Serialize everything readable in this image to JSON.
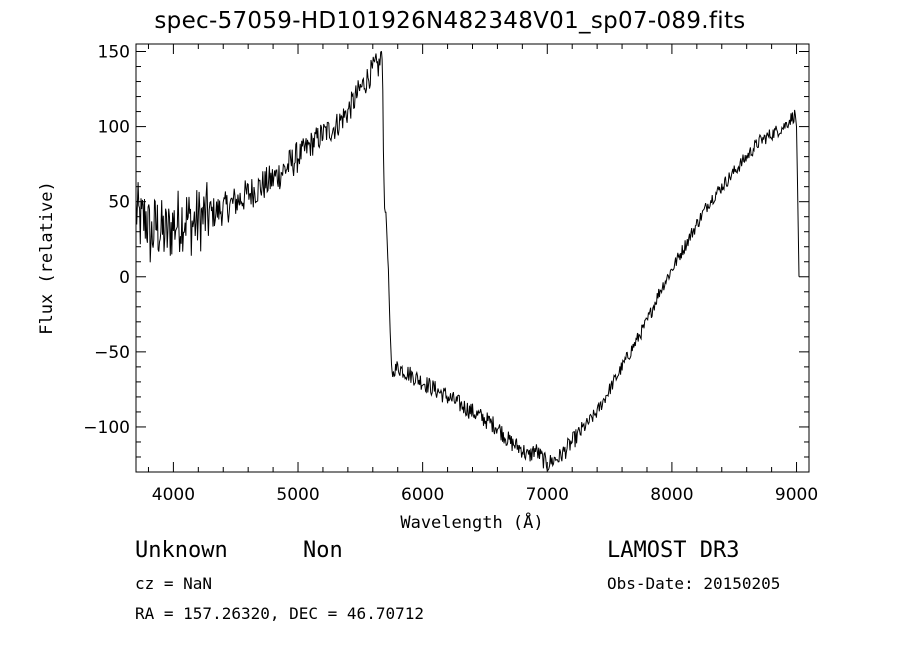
{
  "chart_data": {
    "type": "line",
    "title": "spec-57059-HD101926N482348V01_sp07-089.fits",
    "xlabel": "Wavelength (Å)",
    "ylabel": "Flux (relative)",
    "xlim": [
      3700,
      9100
    ],
    "ylim": [
      -130,
      155
    ],
    "xticks": [
      4000,
      5000,
      6000,
      7000,
      8000,
      9000
    ],
    "yticks": [
      -100,
      -50,
      0,
      50,
      100,
      150
    ],
    "grid": false,
    "line_color": "#000000",
    "series": [
      {
        "x": [
          3700,
          3740,
          3780,
          3820,
          3860,
          3900,
          3950,
          4000,
          4050,
          4100,
          4150,
          4200,
          4250,
          4300,
          4400,
          4500,
          4600,
          4700,
          4800,
          4900,
          5000,
          5100,
          5200,
          5300,
          5400,
          5500,
          5580,
          5620,
          5650,
          5670,
          5680,
          5690,
          5700,
          5710,
          5720,
          5730,
          5740,
          5750,
          5760,
          5800,
          5900,
          6000,
          6100,
          6200,
          6300,
          6400,
          6500,
          6600,
          6700,
          6800,
          6850,
          6900,
          6950,
          7000,
          7050,
          7100,
          7200,
          7300,
          7400,
          7500,
          7600,
          7700,
          7800,
          7900,
          8000,
          8100,
          8200,
          8300,
          8400,
          8500,
          8600,
          8700,
          8800,
          8900,
          8950,
          8990,
          9000,
          9020
        ],
        "y": [
          45,
          35,
          40,
          25,
          35,
          30,
          28,
          35,
          38,
          40,
          35,
          38,
          40,
          42,
          45,
          50,
          55,
          60,
          65,
          72,
          80,
          88,
          95,
          100,
          110,
          125,
          135,
          140,
          140,
          150,
          125,
          60,
          45,
          35,
          15,
          -10,
          -40,
          -60,
          -65,
          -60,
          -65,
          -70,
          -75,
          -80,
          -85,
          -90,
          -95,
          -100,
          -110,
          -115,
          -120,
          -115,
          -120,
          -125,
          -122,
          -120,
          -110,
          -100,
          -90,
          -75,
          -60,
          -45,
          -30,
          -10,
          5,
          20,
          35,
          50,
          60,
          70,
          80,
          90,
          95,
          100,
          105,
          108,
          100,
          0
        ]
      }
    ]
  },
  "footer": {
    "class": "Unknown",
    "subclass": "Non",
    "survey": "LAMOST DR3",
    "cz": "cz = NaN",
    "obs_date": "Obs-Date: 20150205",
    "radec": "RA = 157.26320, DEC =  46.70712"
  }
}
